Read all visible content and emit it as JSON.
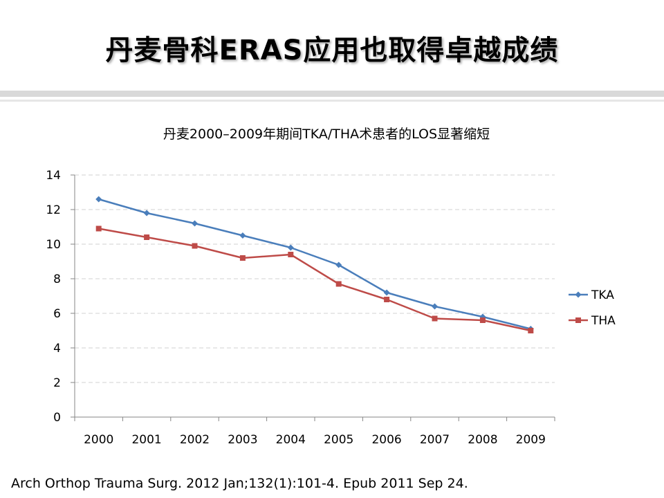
{
  "slide": {
    "title": "丹麦骨科ERAS应用也取得卓越成绩",
    "citation": "Arch Orthop Trauma Surg. 2012 Jan;132(1):101-4. Epub 2011 Sep 24."
  },
  "chart_data": {
    "type": "line",
    "title": "丹麦2000–2009年期间TKA/THA术患者的LOS显著缩短",
    "xlabel": "",
    "ylabel": "",
    "categories": [
      "2000",
      "2001",
      "2002",
      "2003",
      "2004",
      "2005",
      "2006",
      "2007",
      "2008",
      "2009"
    ],
    "ylim": [
      0,
      14
    ],
    "yticks": [
      0,
      2,
      4,
      6,
      8,
      10,
      12,
      14
    ],
    "grid": "horizontal-dashed",
    "legend_position": "right",
    "series": [
      {
        "name": "TKA",
        "marker": "diamond",
        "color": "#4a7ebb",
        "values": [
          12.6,
          11.8,
          11.2,
          10.5,
          9.8,
          8.8,
          7.2,
          6.4,
          5.8,
          5.1
        ]
      },
      {
        "name": "THA",
        "marker": "square",
        "color": "#be4b48",
        "values": [
          10.9,
          10.4,
          9.9,
          9.2,
          9.4,
          7.7,
          6.8,
          5.7,
          5.6,
          5.0
        ]
      }
    ]
  }
}
